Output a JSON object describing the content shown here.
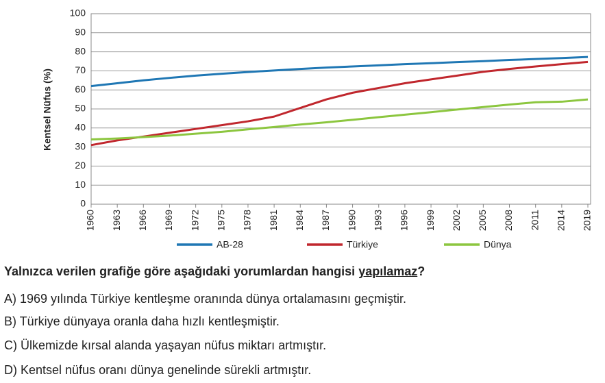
{
  "chart_data": {
    "type": "line",
    "y_label": "Kentsel Nüfus (%)",
    "categories": [
      "1960",
      "1963",
      "1966",
      "1969",
      "1972",
      "1975",
      "1978",
      "1981",
      "1984",
      "1987",
      "1990",
      "1993",
      "1996",
      "1999",
      "2002",
      "2005",
      "2008",
      "2011",
      "2014",
      "2019"
    ],
    "series": [
      {
        "name": "AB-28",
        "color": "#1f77b4",
        "values": [
          62,
          63.5,
          65,
          66.3,
          67.5,
          68.5,
          69.4,
          70.2,
          71,
          71.7,
          72.3,
          72.9,
          73.5,
          74,
          74.6,
          75.1,
          75.7,
          76.2,
          76.7,
          77.3
        ]
      },
      {
        "name": "Türkiye",
        "color": "#c0272d",
        "values": [
          31,
          33.5,
          35.5,
          37.5,
          39.5,
          41.5,
          43.5,
          46,
          50.5,
          55,
          58.5,
          61,
          63.5,
          65.5,
          67.5,
          69.5,
          71,
          72.3,
          73.5,
          74.7
        ]
      },
      {
        "name": "Dünya",
        "color": "#8cc63f",
        "values": [
          34,
          34.5,
          35.2,
          36,
          37,
          38,
          39.3,
          40.5,
          41.8,
          43,
          44.3,
          45.7,
          47,
          48.3,
          49.7,
          51,
          52.3,
          53.5,
          53.8,
          55
        ]
      }
    ],
    "ylim": [
      0,
      100
    ],
    "yticks": [
      0,
      10,
      20,
      30,
      40,
      50,
      60,
      70,
      80,
      90,
      100
    ],
    "grid": true
  },
  "question": {
    "prefix": "Yalnızca verilen grafiğe göre aşağıdaki yorumlardan hangisi",
    "emphasis": "yapılamaz",
    "suffix": "?",
    "options": [
      "A) 1969 yılında Türkiye kentleşme oranında dünya ortalamasını geçmiştir.",
      "B) Türkiye dünyaya oranla daha hızlı kentleşmiştir.",
      "C) Ülkemizde kırsal alanda yaşayan nüfus miktarı artmıştır.",
      "D) Kentsel nüfus oranı dünya genelinde sürekli artmıştır."
    ]
  }
}
